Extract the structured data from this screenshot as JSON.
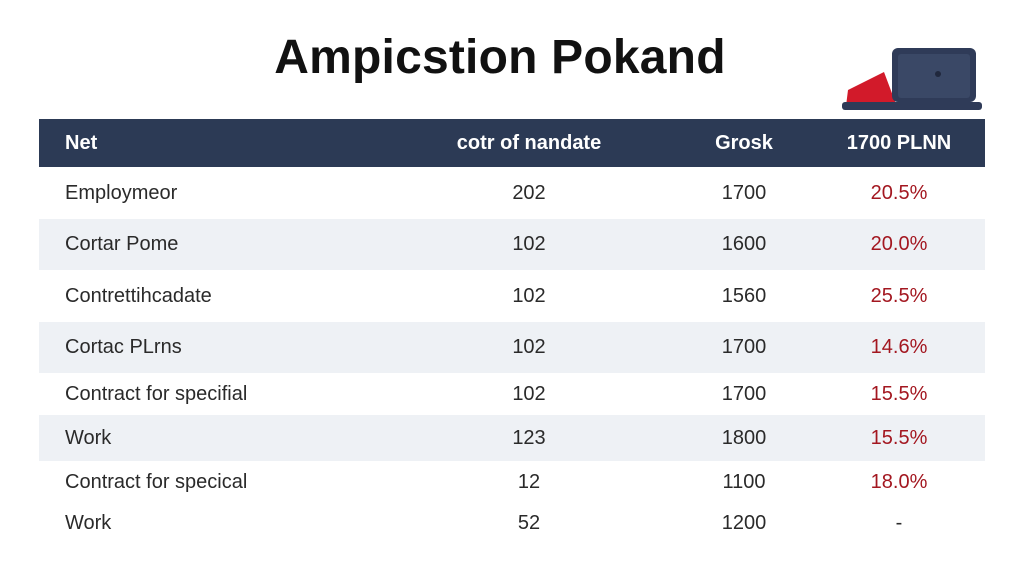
{
  "title": "Ampicstion Pokand",
  "icons": {
    "corner_icon": "laptop-icon"
  },
  "colors": {
    "header_bg": "#2c3a55",
    "row_alt_bg": "#eef1f5",
    "percent_text": "#a31720"
  },
  "table": {
    "headers": [
      "Net",
      "cotr of nandate",
      "Grosk",
      "1700 PLNN"
    ],
    "rows": [
      {
        "label": "Employmeor",
        "a": "202",
        "b": "1700",
        "c": "20.5%"
      },
      {
        "label": "Cortar Pome",
        "a": "102",
        "b": "1600",
        "c": "20.0%"
      },
      {
        "label": "Contrettihcadate",
        "a": "102",
        "b": "1560",
        "c": "25.5%"
      },
      {
        "label": "Cortac PLrns",
        "a": "102",
        "b": "1700",
        "c": "14.6%"
      },
      {
        "label": "Contract for specifial",
        "a": "102",
        "b": "1700",
        "c": "15.5%"
      },
      {
        "label": "Work",
        "a": "123",
        "b": "1800",
        "c": "15.5%"
      },
      {
        "label": "Contract for specical",
        "a": "12",
        "b": "1100",
        "c": "18.0%"
      },
      {
        "label": "Work",
        "a": "52",
        "b": "1200",
        "c": "-"
      }
    ]
  }
}
